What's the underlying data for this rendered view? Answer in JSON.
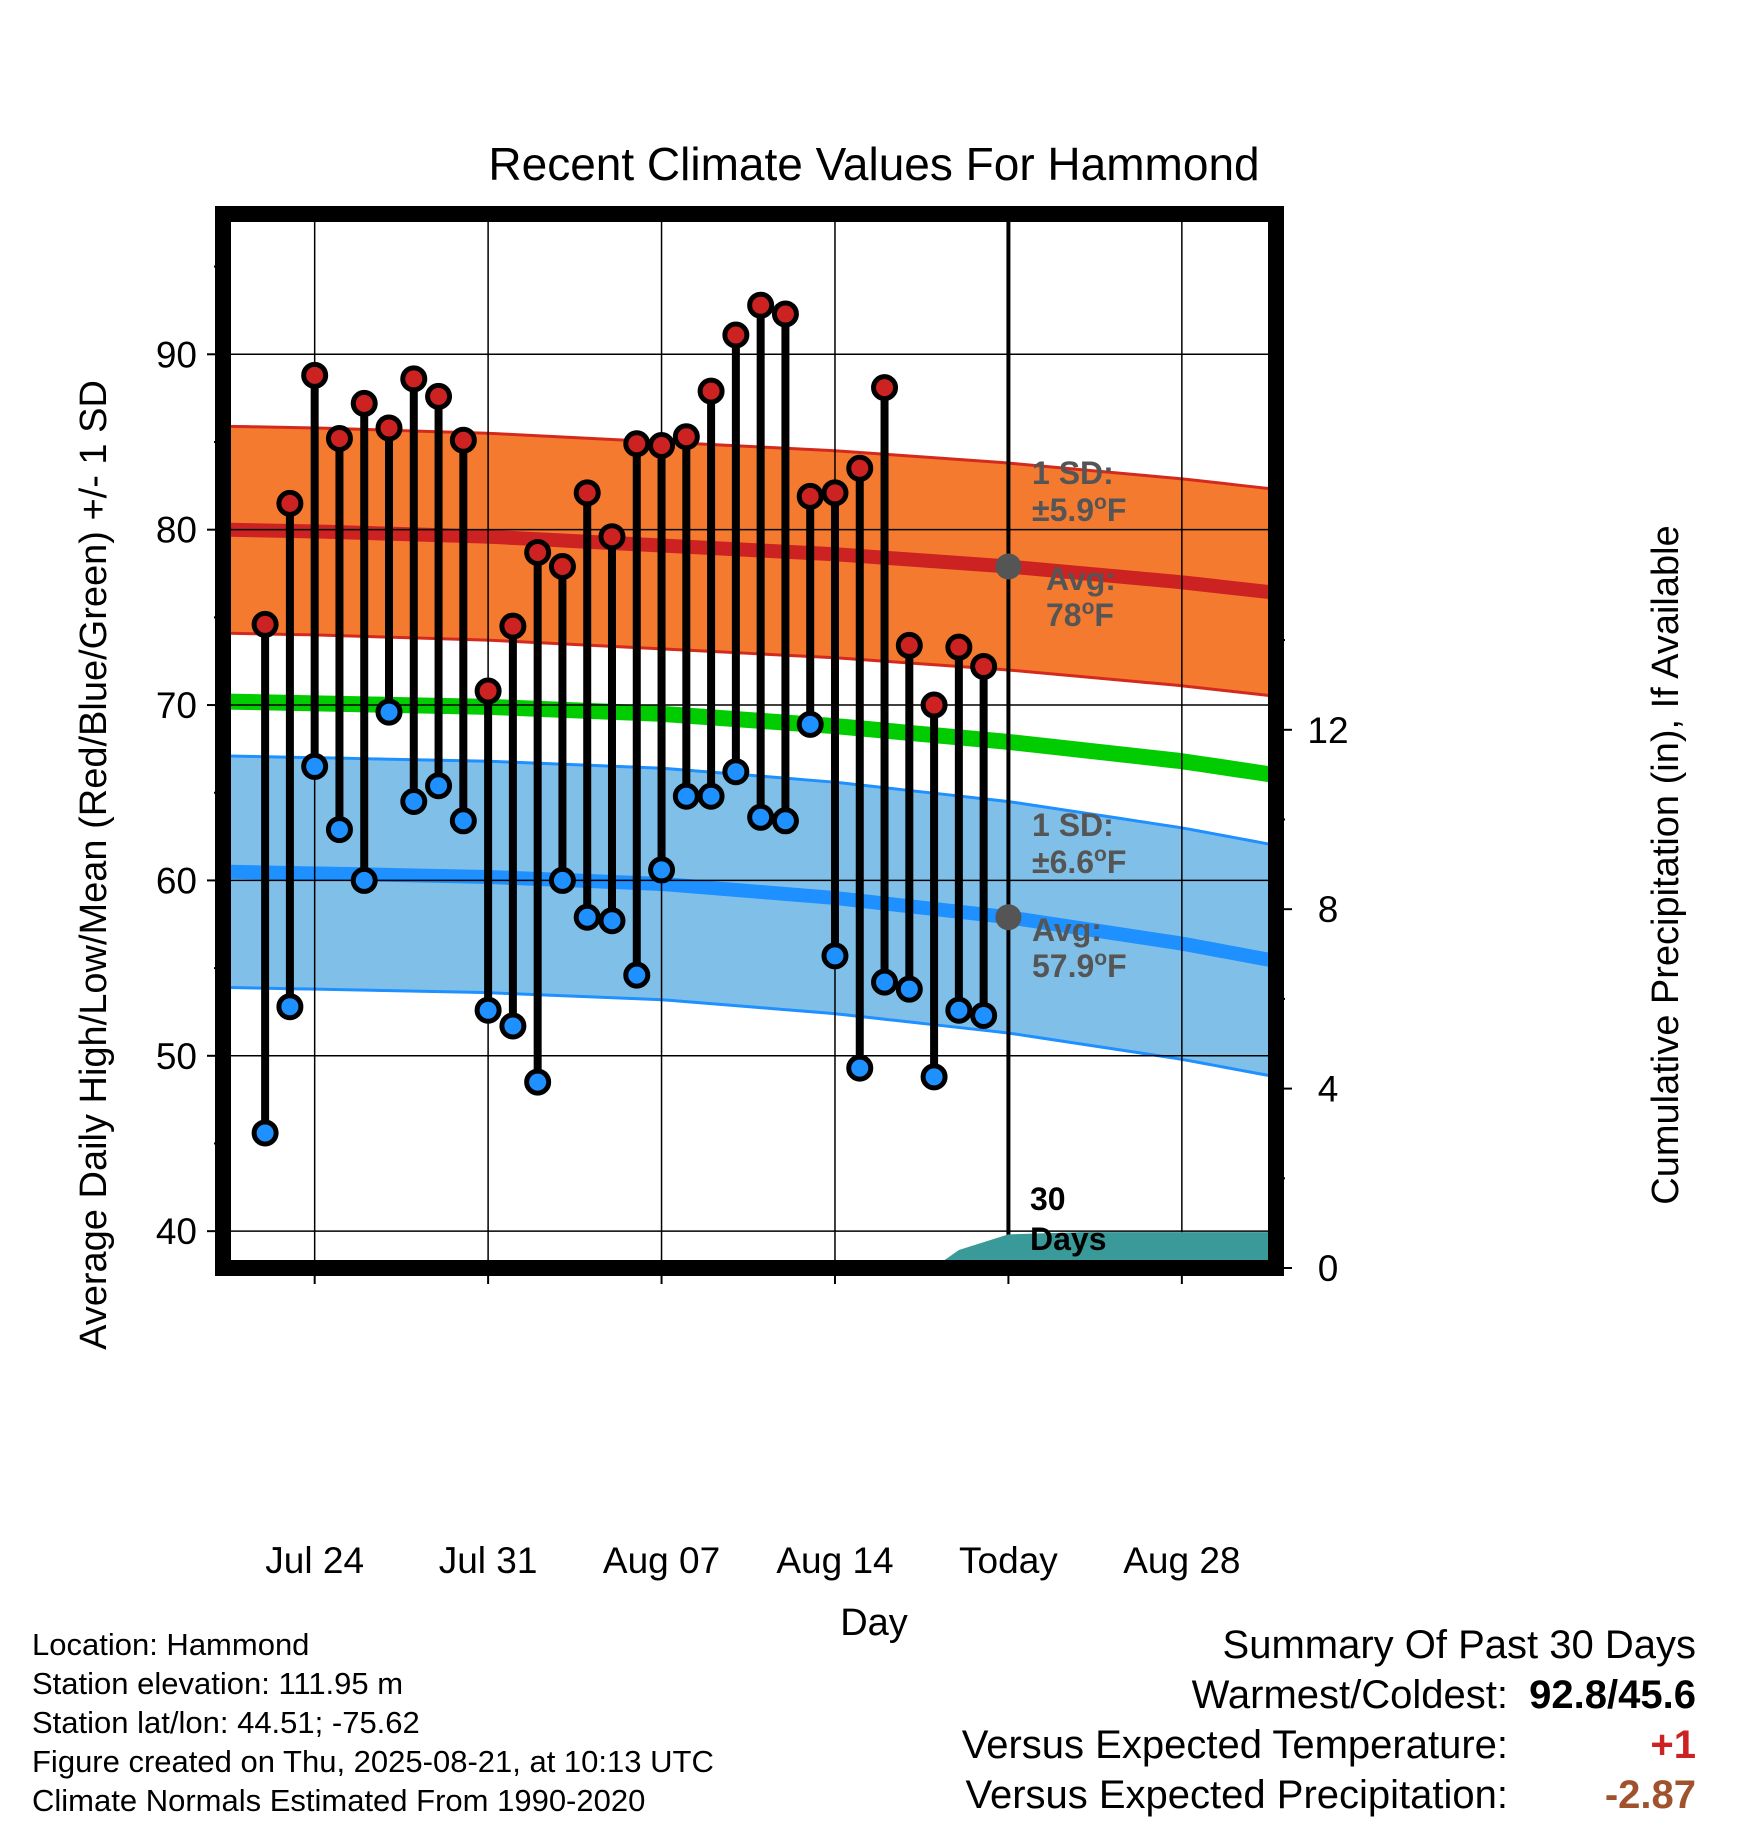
{
  "chart_data": {
    "type": "line",
    "title": "Recent Climate Values For Hammond",
    "xlabel": "Day",
    "ylabel": "Average Daily High/Low/Mean (Red/Blue/Green) +/- 1 SD",
    "y2label": "Cumulative Precipitation (in), If Available",
    "ylim": [
      37.9,
      98
    ],
    "y2lim": [
      0,
      23.5
    ],
    "yticks": [
      40,
      50,
      60,
      70,
      80,
      90
    ],
    "y2ticks": [
      0,
      4,
      8,
      12
    ],
    "x_tick_labels": [
      "Jul 24",
      "Jul 31",
      "Aug 07",
      "Aug 14",
      "Today",
      "Aug 28"
    ],
    "x_tick_days": [
      24,
      31,
      38,
      45,
      52,
      59
    ],
    "xlim": [
      20.3,
      62.8
    ],
    "grid": true,
    "today_marker": {
      "day": 52,
      "label": "30 Days"
    },
    "observed_days": [
      22,
      23,
      24,
      25,
      26,
      27,
      28,
      29,
      30,
      31,
      32,
      33,
      34,
      35,
      36,
      37,
      38,
      39,
      40,
      41,
      42,
      43,
      44,
      45,
      46,
      47,
      48,
      49,
      50,
      51
    ],
    "observed_dates": [
      "Jul 22",
      "Jul 23",
      "Jul 24",
      "Jul 25",
      "Jul 26",
      "Jul 27",
      "Jul 28",
      "Jul 29",
      "Jul 30",
      "Jul 31",
      "Aug 01",
      "Aug 02",
      "Aug 03",
      "Aug 04",
      "Aug 05",
      "Aug 06",
      "Aug 07",
      "Aug 08",
      "Aug 09",
      "Aug 10",
      "Aug 11",
      "Aug 12",
      "Aug 13",
      "Aug 14",
      "Aug 15",
      "Aug 16",
      "Aug 17",
      "Aug 18",
      "Aug 19",
      "Aug 20"
    ],
    "series": [
      {
        "name": "High",
        "color": "#cc2222",
        "values": [
          74.6,
          81.5,
          88.8,
          85.2,
          87.2,
          85.8,
          88.6,
          87.6,
          85.1,
          70.8,
          74.5,
          78.7,
          77.9,
          82.1,
          79.6,
          84.9,
          84.8,
          85.3,
          87.9,
          91.1,
          92.8,
          92.3,
          81.9,
          82.1,
          83.5,
          88.1,
          73.4,
          70.0,
          73.3,
          72.2
        ]
      },
      {
        "name": "Low",
        "color": "#1e90ff",
        "values": [
          45.6,
          52.8,
          66.5,
          62.9,
          60.0,
          69.6,
          64.5,
          65.4,
          63.4,
          52.6,
          51.7,
          48.5,
          60.0,
          57.9,
          57.7,
          54.6,
          60.6,
          64.8,
          64.8,
          66.2,
          63.6,
          63.4,
          68.9,
          55.7,
          49.3,
          54.2,
          53.8,
          48.8,
          52.6,
          52.3
        ]
      }
    ],
    "normals": {
      "days": [
        20.3,
        24,
        31,
        38,
        45,
        52,
        59,
        62.8
      ],
      "high_mean": [
        80.0,
        79.9,
        79.6,
        79.1,
        78.6,
        77.9,
        77.0,
        76.4
      ],
      "high_sd": 5.9,
      "low_mean": [
        60.5,
        60.4,
        60.2,
        59.8,
        59.0,
        57.9,
        56.4,
        55.4
      ],
      "low_sd": 6.6,
      "mean": [
        70.2,
        70.1,
        69.9,
        69.5,
        68.8,
        67.9,
        66.8,
        66.0
      ]
    },
    "precip": {
      "days": [
        49.1,
        50,
        52,
        55,
        62.8
      ],
      "values": [
        0.05,
        0.4,
        0.75,
        0.8,
        0.8
      ],
      "color": "#3a9a9a"
    },
    "annotations": {
      "high_sd": {
        "line1": "1 SD:",
        "line2": "±5.9",
        "unit": "F"
      },
      "high_avg": {
        "line1": "Avg:",
        "line2": "78",
        "unit": "F",
        "value": 77.9
      },
      "low_sd": {
        "line1": "1 SD:",
        "line2": "±6.6",
        "unit": "F"
      },
      "low_avg": {
        "line1": "Avg:",
        "line2": "57.9",
        "unit": "F",
        "value": 57.9
      },
      "degree_symbol": "o"
    },
    "colors": {
      "high_band": "#f47a30",
      "high_band_edge": "#d42a1e",
      "high_line": "#cc2222",
      "low_band": "#80c0e8",
      "low_band_edge": "#1e90ff",
      "low_line": "#1e90ff",
      "mean_line": "#00cc00",
      "annotation_text": "#555555",
      "marker_today": "#555555"
    }
  },
  "metadata": {
    "location": "Location: Hammond",
    "elevation": "Station elevation: 111.95 m",
    "latlon": "Station lat/lon: 44.51; -75.62",
    "created": "Figure created on Thu, 2025-08-21, at 10:13 UTC",
    "normals_period": "Climate Normals Estimated From 1990-2020"
  },
  "summary": {
    "title": "Summary Of Past 30 Days",
    "warmest_label": "Warmest/Coldest:",
    "warmest_value": "92.8/45.6",
    "temp_label": "Versus Expected Temperature:",
    "temp_value": "+1",
    "temp_color": "#cc2222",
    "precip_label": "Versus Expected Precipitation:",
    "precip_value": "-2.87",
    "precip_color": "#a0522d"
  }
}
